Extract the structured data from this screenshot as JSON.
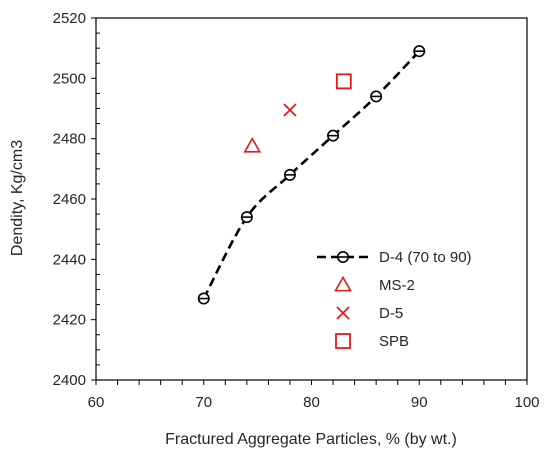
{
  "chart_data": {
    "type": "scatter",
    "title": "",
    "xlabel": "Fractured Aggregate Particles, % (by wt.)",
    "ylabel": "Dendity, Kg/cm3",
    "xlim": [
      60,
      100
    ],
    "ylim": [
      2400,
      2520
    ],
    "x_ticks": [
      60,
      70,
      80,
      90,
      100
    ],
    "y_ticks": [
      2400,
      2420,
      2440,
      2460,
      2480,
      2500,
      2520
    ],
    "x_tick_labels": [
      "60",
      "70",
      "80",
      "90",
      "100"
    ],
    "y_tick_labels": [
      "2400",
      "2420",
      "2440",
      "2460",
      "2480",
      "2500",
      "2520"
    ],
    "grid": false,
    "legend_position": "right",
    "series": [
      {
        "name": "D-4 (70 to 90)",
        "marker": "circle",
        "line": "dashed",
        "color": "#000000",
        "x": [
          70,
          74,
          78,
          82,
          86,
          90
        ],
        "y": [
          2427,
          2454,
          2468,
          2481,
          2494,
          2509
        ]
      },
      {
        "name": "MS-2",
        "marker": "triangle",
        "line": "none",
        "color": "#e31a1c",
        "x": [
          74.5
        ],
        "y": [
          2477.5
        ]
      },
      {
        "name": "D-5",
        "marker": "x",
        "line": "none",
        "color": "#e31a1c",
        "x": [
          78
        ],
        "y": [
          2489.5
        ]
      },
      {
        "name": "SPB",
        "marker": "square",
        "line": "none",
        "color": "#e31a1c",
        "x": [
          83
        ],
        "y": [
          2499
        ]
      }
    ]
  }
}
